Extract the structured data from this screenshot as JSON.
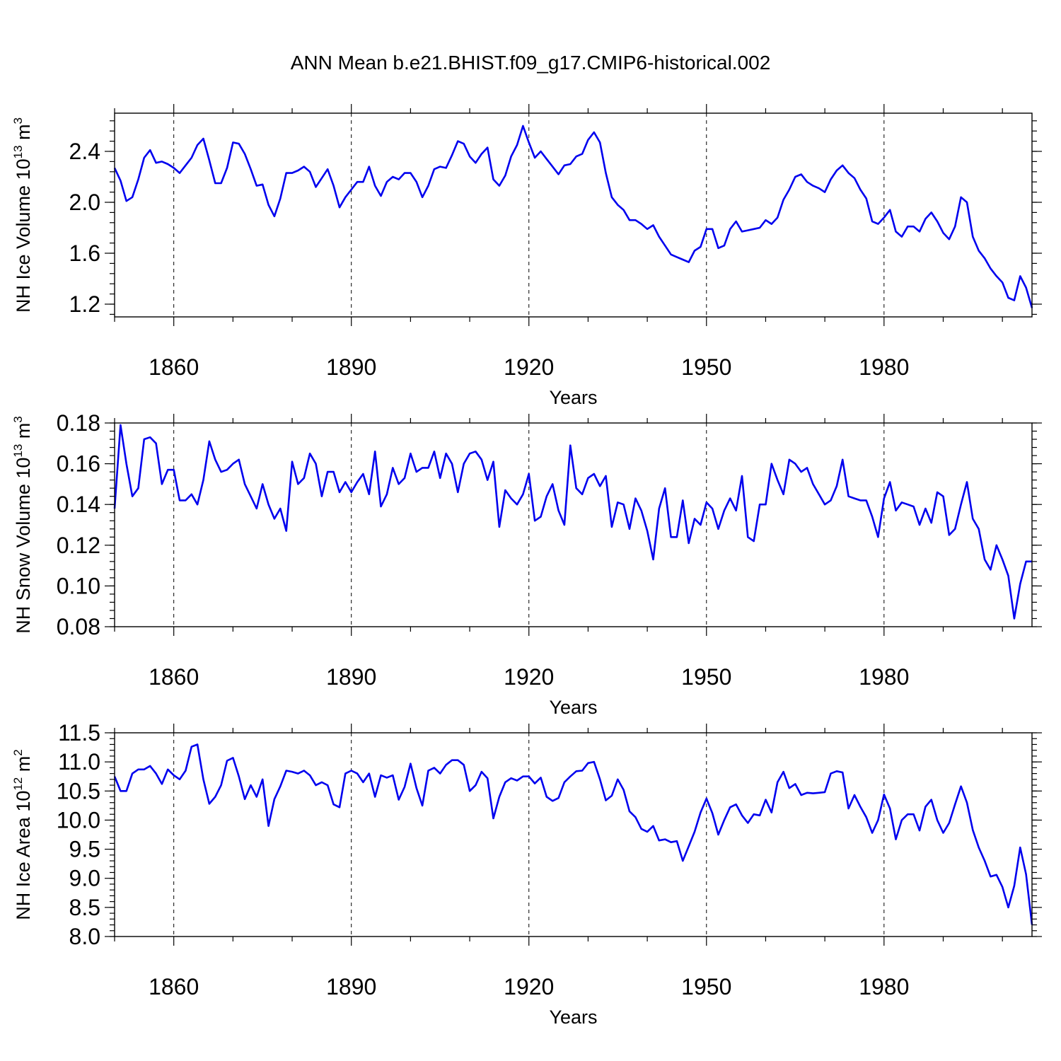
{
  "title": "ANN Mean b.e21.BHIST.f09_g17.CMIP6-historical.002",
  "chart_data": [
    {
      "type": "line",
      "xlabel": "Years",
      "ylabel": "NH Ice Volume 10",
      "ylabel_exp": "13",
      "ylabel_unit": "m",
      "ylabel_unit_exp": "3",
      "xlim": [
        1850,
        2005
      ],
      "ylim": [
        1.1,
        2.7
      ],
      "xticks": [
        "1860",
        "1890",
        "1920",
        "1950",
        "1980"
      ],
      "yticks": [
        "1.2",
        "1.6",
        "2.0",
        "2.4"
      ],
      "x_start": 1850,
      "color": "#0000ee",
      "values": [
        2.27,
        2.17,
        2.01,
        2.04,
        2.18,
        2.35,
        2.41,
        2.31,
        2.32,
        2.3,
        2.27,
        2.23,
        2.29,
        2.35,
        2.45,
        2.5,
        2.33,
        2.15,
        2.15,
        2.27,
        2.47,
        2.46,
        2.38,
        2.26,
        2.13,
        2.14,
        1.98,
        1.89,
        2.03,
        2.23,
        2.23,
        2.25,
        2.28,
        2.24,
        2.12,
        2.19,
        2.26,
        2.13,
        1.96,
        2.04,
        2.1,
        2.16,
        2.16,
        2.28,
        2.13,
        2.05,
        2.16,
        2.2,
        2.18,
        2.23,
        2.23,
        2.16,
        2.04,
        2.13,
        2.26,
        2.28,
        2.27,
        2.37,
        2.48,
        2.46,
        2.36,
        2.31,
        2.38,
        2.43,
        2.18,
        2.13,
        2.21,
        2.36,
        2.45,
        2.6,
        2.47,
        2.35,
        2.4,
        2.34,
        2.28,
        2.22,
        2.29,
        2.3,
        2.36,
        2.38,
        2.49,
        2.55,
        2.47,
        2.23,
        2.04,
        1.98,
        1.94,
        1.86,
        1.86,
        1.83,
        1.79,
        1.82,
        1.73,
        1.66,
        1.59,
        1.57,
        1.55,
        1.53,
        1.62,
        1.65,
        1.79,
        1.79,
        1.64,
        1.66,
        1.79,
        1.85,
        1.77,
        1.78,
        1.79,
        1.8,
        1.86,
        1.83,
        1.88,
        2.02,
        2.1,
        2.2,
        2.22,
        2.16,
        2.13,
        2.11,
        2.08,
        2.18,
        2.25,
        2.29,
        2.23,
        2.19,
        2.1,
        2.03,
        1.85,
        1.83,
        1.88,
        1.94,
        1.77,
        1.73,
        1.81,
        1.81,
        1.77,
        1.87,
        1.92,
        1.85,
        1.76,
        1.71,
        1.81,
        2.04,
        2.0,
        1.73,
        1.62,
        1.56,
        1.48,
        1.42,
        1.37,
        1.25,
        1.23,
        1.42,
        1.33,
        1.17
      ]
    },
    {
      "type": "line",
      "xlabel": "Years",
      "ylabel": "NH Snow Volume 10",
      "ylabel_exp": "13",
      "ylabel_unit": "m",
      "ylabel_unit_exp": "3",
      "xlim": [
        1850,
        2005
      ],
      "ylim": [
        0.08,
        0.18
      ],
      "xticks": [
        "1860",
        "1890",
        "1920",
        "1950",
        "1980"
      ],
      "yticks": [
        "0.08",
        "0.10",
        "0.12",
        "0.14",
        "0.16",
        "0.18"
      ],
      "x_start": 1850,
      "color": "#0000ee",
      "values": [
        0.138,
        0.179,
        0.16,
        0.144,
        0.148,
        0.172,
        0.173,
        0.17,
        0.15,
        0.157,
        0.157,
        0.142,
        0.142,
        0.145,
        0.14,
        0.152,
        0.171,
        0.162,
        0.156,
        0.157,
        0.16,
        0.162,
        0.15,
        0.144,
        0.138,
        0.15,
        0.14,
        0.133,
        0.138,
        0.127,
        0.161,
        0.15,
        0.153,
        0.165,
        0.16,
        0.144,
        0.156,
        0.156,
        0.146,
        0.151,
        0.146,
        0.151,
        0.155,
        0.145,
        0.166,
        0.139,
        0.145,
        0.158,
        0.15,
        0.153,
        0.165,
        0.156,
        0.158,
        0.158,
        0.166,
        0.153,
        0.165,
        0.16,
        0.146,
        0.16,
        0.165,
        0.166,
        0.162,
        0.152,
        0.161,
        0.129,
        0.147,
        0.143,
        0.14,
        0.145,
        0.155,
        0.132,
        0.134,
        0.144,
        0.15,
        0.137,
        0.13,
        0.169,
        0.148,
        0.145,
        0.153,
        0.155,
        0.149,
        0.154,
        0.129,
        0.141,
        0.14,
        0.128,
        0.143,
        0.137,
        0.127,
        0.113,
        0.138,
        0.148,
        0.124,
        0.124,
        0.142,
        0.121,
        0.133,
        0.13,
        0.141,
        0.138,
        0.128,
        0.137,
        0.143,
        0.137,
        0.154,
        0.124,
        0.122,
        0.14,
        0.14,
        0.16,
        0.152,
        0.145,
        0.162,
        0.16,
        0.156,
        0.158,
        0.15,
        0.145,
        0.14,
        0.142,
        0.149,
        0.162,
        0.144,
        0.143,
        0.142,
        0.142,
        0.134,
        0.124,
        0.143,
        0.151,
        0.137,
        0.141,
        0.14,
        0.139,
        0.13,
        0.138,
        0.131,
        0.146,
        0.144,
        0.125,
        0.128,
        0.14,
        0.151,
        0.133,
        0.128,
        0.113,
        0.108,
        0.12,
        0.113,
        0.105,
        0.084,
        0.101,
        0.112,
        0.112
      ]
    },
    {
      "type": "line",
      "xlabel": "Years",
      "ylabel": "NH Ice Area 10",
      "ylabel_exp": "12",
      "ylabel_unit": "m",
      "ylabel_unit_exp": "2",
      "xlim": [
        1850,
        2005
      ],
      "ylim": [
        8.0,
        11.5
      ],
      "xticks": [
        "1860",
        "1890",
        "1920",
        "1950",
        "1980"
      ],
      "yticks": [
        "8.0",
        "8.5",
        "9.0",
        "9.5",
        "10.0",
        "10.5",
        "11.0",
        "11.5"
      ],
      "x_start": 1850,
      "color": "#0000ee",
      "values": [
        10.75,
        10.5,
        10.5,
        10.8,
        10.87,
        10.87,
        10.93,
        10.8,
        10.62,
        10.87,
        10.77,
        10.7,
        10.85,
        11.26,
        11.3,
        10.7,
        10.28,
        10.4,
        10.6,
        11.02,
        11.07,
        10.75,
        10.36,
        10.6,
        10.4,
        10.7,
        9.9,
        10.36,
        10.58,
        10.85,
        10.83,
        10.8,
        10.85,
        10.77,
        10.6,
        10.65,
        10.6,
        10.27,
        10.22,
        10.8,
        10.85,
        10.8,
        10.65,
        10.8,
        10.4,
        10.77,
        10.73,
        10.77,
        10.35,
        10.57,
        10.97,
        10.55,
        10.25,
        10.85,
        10.9,
        10.8,
        10.95,
        11.03,
        11.03,
        10.95,
        10.5,
        10.6,
        10.83,
        10.72,
        10.03,
        10.4,
        10.65,
        10.72,
        10.68,
        10.75,
        10.75,
        10.63,
        10.73,
        10.4,
        10.33,
        10.38,
        10.65,
        10.75,
        10.84,
        10.85,
        10.98,
        11.0,
        10.7,
        10.34,
        10.42,
        10.7,
        10.52,
        10.15,
        10.05,
        9.85,
        9.8,
        9.9,
        9.65,
        9.67,
        9.62,
        9.64,
        9.3,
        9.55,
        9.8,
        10.13,
        10.37,
        10.12,
        9.75,
        10.0,
        10.22,
        10.27,
        10.08,
        9.95,
        10.1,
        10.08,
        10.35,
        10.13,
        10.65,
        10.83,
        10.55,
        10.62,
        10.43,
        10.47,
        10.46,
        10.47,
        10.48,
        10.8,
        10.84,
        10.82,
        10.2,
        10.43,
        10.23,
        10.05,
        9.78,
        10.0,
        10.44,
        10.2,
        9.67,
        10.0,
        10.1,
        10.1,
        9.82,
        10.23,
        10.35,
        10.0,
        9.78,
        9.95,
        10.27,
        10.58,
        10.3,
        9.83,
        9.53,
        9.3,
        9.03,
        9.06,
        8.85,
        8.5,
        8.87,
        9.53,
        9.07,
        8.2
      ]
    }
  ]
}
